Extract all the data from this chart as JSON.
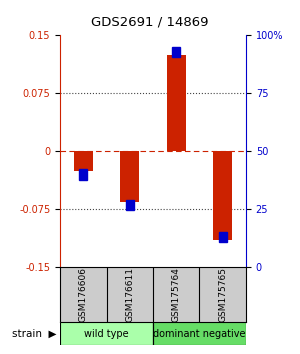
{
  "title": "GDS2691 / 14869",
  "samples": [
    "GSM176606",
    "GSM176611",
    "GSM175764",
    "GSM175765"
  ],
  "log10_ratio": [
    -0.025,
    -0.065,
    0.125,
    -0.115
  ],
  "percentile_rank": [
    40,
    27,
    93,
    13
  ],
  "ylim": [
    -0.15,
    0.15
  ],
  "yticks_left": [
    -0.15,
    -0.075,
    0,
    0.075,
    0.15
  ],
  "ytick_labels_left": [
    "-0.15",
    "-0.075",
    "0",
    "0.075",
    "0.15"
  ],
  "groups": [
    {
      "label": "wild type",
      "samples": [
        0,
        1
      ],
      "color": "#aaffaa"
    },
    {
      "label": "dominant negative",
      "samples": [
        2,
        3
      ],
      "color": "#66dd66"
    }
  ],
  "group_label": "strain",
  "bar_color_red": "#cc2200",
  "bar_color_blue": "#0000cc",
  "zero_line_color": "#cc2200",
  "grid_color": "#555555",
  "bg_color": "#ffffff",
  "label_area_bg": "#cccccc",
  "bar_width": 0.4
}
